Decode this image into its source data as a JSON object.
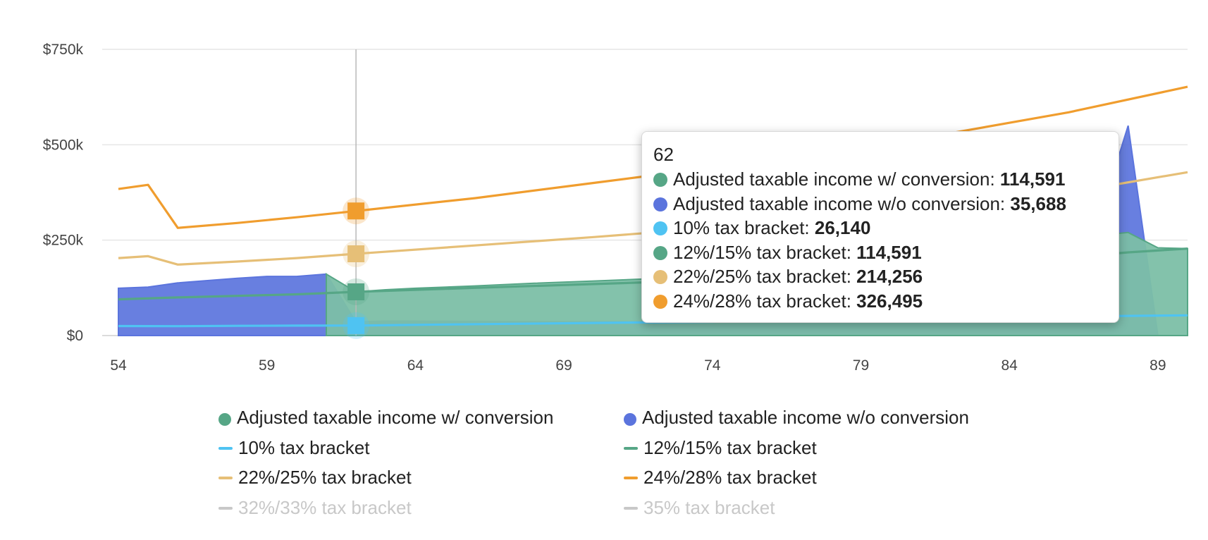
{
  "chart_data": {
    "type": "area",
    "xlim": [
      54,
      90
    ],
    "ylim": [
      0,
      750000
    ],
    "x_ticks": [
      "54",
      "59",
      "64",
      "69",
      "74",
      "79",
      "84",
      "89"
    ],
    "y_ticks": [
      "$750k",
      "$500k",
      "$250k",
      "$0"
    ],
    "grid": true,
    "legend_position": "bottom",
    "series": [
      {
        "name": "Adjusted taxable income w/o conversion",
        "kind": "area",
        "color": "#5b74dd",
        "points": [
          [
            54,
            124000
          ],
          [
            55,
            127000
          ],
          [
            56,
            138000
          ],
          [
            57,
            144000
          ],
          [
            58,
            150000
          ],
          [
            59,
            155000
          ],
          [
            60,
            155000
          ],
          [
            61,
            161000
          ],
          [
            62,
            35688
          ],
          [
            63,
            38000
          ],
          [
            70,
            36000
          ],
          [
            80,
            36000
          ],
          [
            86,
            42000
          ],
          [
            87,
            300000
          ],
          [
            88,
            550000
          ],
          [
            89,
            0
          ],
          [
            90,
            0
          ]
        ]
      },
      {
        "name": "Adjusted taxable income w/ conversion",
        "kind": "area",
        "color": "#7cbfa6",
        "stroke": "#56a686",
        "points": [
          [
            61,
            161000
          ],
          [
            62,
            114591
          ],
          [
            63,
            120000
          ],
          [
            64,
            124000
          ],
          [
            66,
            130000
          ],
          [
            68,
            137000
          ],
          [
            70,
            143000
          ],
          [
            72,
            149000
          ],
          [
            88,
            270000
          ],
          [
            89,
            230000
          ],
          [
            90,
            228000
          ]
        ]
      },
      {
        "name": "10% tax bracket",
        "kind": "line",
        "color": "#4fc3f2",
        "points": [
          [
            54,
            25000
          ],
          [
            56,
            24500
          ],
          [
            58,
            25500
          ],
          [
            60,
            26000
          ],
          [
            62,
            26140
          ],
          [
            64,
            28000
          ],
          [
            70,
            33000
          ],
          [
            74,
            36000
          ],
          [
            86,
            50000
          ],
          [
            90,
            53000
          ]
        ]
      },
      {
        "name": "12%/15% tax bracket",
        "kind": "line",
        "color": "#56a686",
        "points": [
          [
            54,
            95000
          ],
          [
            56,
            100000
          ],
          [
            58,
            104000
          ],
          [
            60,
            108000
          ],
          [
            62,
            114591
          ],
          [
            66,
            125000
          ],
          [
            72,
            140000
          ],
          [
            76,
            158000
          ],
          [
            82,
            185000
          ],
          [
            86,
            205000
          ],
          [
            88,
            218000
          ],
          [
            90,
            228000
          ]
        ]
      },
      {
        "name": "22%/25% tax bracket",
        "kind": "line",
        "color": "#e6bf77",
        "points": [
          [
            54,
            203000
          ],
          [
            55,
            208000
          ],
          [
            56,
            186000
          ],
          [
            58,
            194000
          ],
          [
            60,
            203000
          ],
          [
            62,
            214256
          ],
          [
            66,
            236000
          ],
          [
            70,
            258000
          ],
          [
            74,
            282000
          ],
          [
            78,
            310000
          ],
          [
            82,
            340000
          ],
          [
            86,
            375000
          ],
          [
            90,
            428000
          ]
        ]
      },
      {
        "name": "24%/28% tax bracket",
        "kind": "line",
        "color": "#f09d2e",
        "points": [
          [
            54,
            384000
          ],
          [
            55,
            395000
          ],
          [
            56,
            282000
          ],
          [
            58,
            295000
          ],
          [
            60,
            310000
          ],
          [
            62,
            326495
          ],
          [
            66,
            360000
          ],
          [
            70,
            400000
          ],
          [
            74,
            440000
          ],
          [
            78,
            484000
          ],
          [
            82,
            530000
          ],
          [
            86,
            585000
          ],
          [
            90,
            652000
          ]
        ]
      },
      {
        "name": "32%/33% tax bracket",
        "kind": "line",
        "color": "#c8c8c8",
        "hidden": true,
        "points": []
      },
      {
        "name": "35% tax bracket",
        "kind": "line",
        "color": "#c8c8c8",
        "hidden": true,
        "points": []
      }
    ],
    "crosshair_x": 62,
    "markers": [
      {
        "y": 326495,
        "color": "#f09d2e"
      },
      {
        "y": 214256,
        "color": "#e6bf77"
      },
      {
        "y": 114591,
        "color": "#56a686"
      },
      {
        "y": 26140,
        "color": "#4fc3f2"
      }
    ]
  },
  "tooltip": {
    "title": "62",
    "rows": [
      {
        "label": "Adjusted taxable income w/ conversion: ",
        "value": "114,591",
        "color": "#56a686"
      },
      {
        "label": "Adjusted taxable income w/o conversion: ",
        "value": "35,688",
        "color": "#5b74dd"
      },
      {
        "label": "10% tax bracket: ",
        "value": "26,140",
        "color": "#4fc3f2"
      },
      {
        "label": "12%/15% tax bracket: ",
        "value": "114,591",
        "color": "#56a686"
      },
      {
        "label": "22%/25% tax bracket: ",
        "value": "214,256",
        "color": "#e6bf77"
      },
      {
        "label": "24%/28% tax bracket: ",
        "value": "326,495",
        "color": "#f09d2e"
      }
    ]
  },
  "legend": [
    {
      "label": "Adjusted taxable income w/ conversion",
      "symbol": "dot",
      "color": "#56a686",
      "enabled": true
    },
    {
      "label": "Adjusted taxable income w/o conversion",
      "symbol": "dot",
      "color": "#5b74dd",
      "enabled": true
    },
    {
      "label": "10% tax bracket",
      "symbol": "line",
      "color": "#4fc3f2",
      "enabled": true
    },
    {
      "label": "12%/15% tax bracket",
      "symbol": "line",
      "color": "#56a686",
      "enabled": true
    },
    {
      "label": "22%/25% tax bracket",
      "symbol": "line",
      "color": "#e6bf77",
      "enabled": true
    },
    {
      "label": "24%/28% tax bracket",
      "symbol": "line",
      "color": "#f09d2e",
      "enabled": true
    },
    {
      "label": "32%/33% tax bracket",
      "symbol": "line",
      "color": "#c8c8c8",
      "enabled": false
    },
    {
      "label": "35% tax bracket",
      "symbol": "line",
      "color": "#c8c8c8",
      "enabled": false
    }
  ]
}
